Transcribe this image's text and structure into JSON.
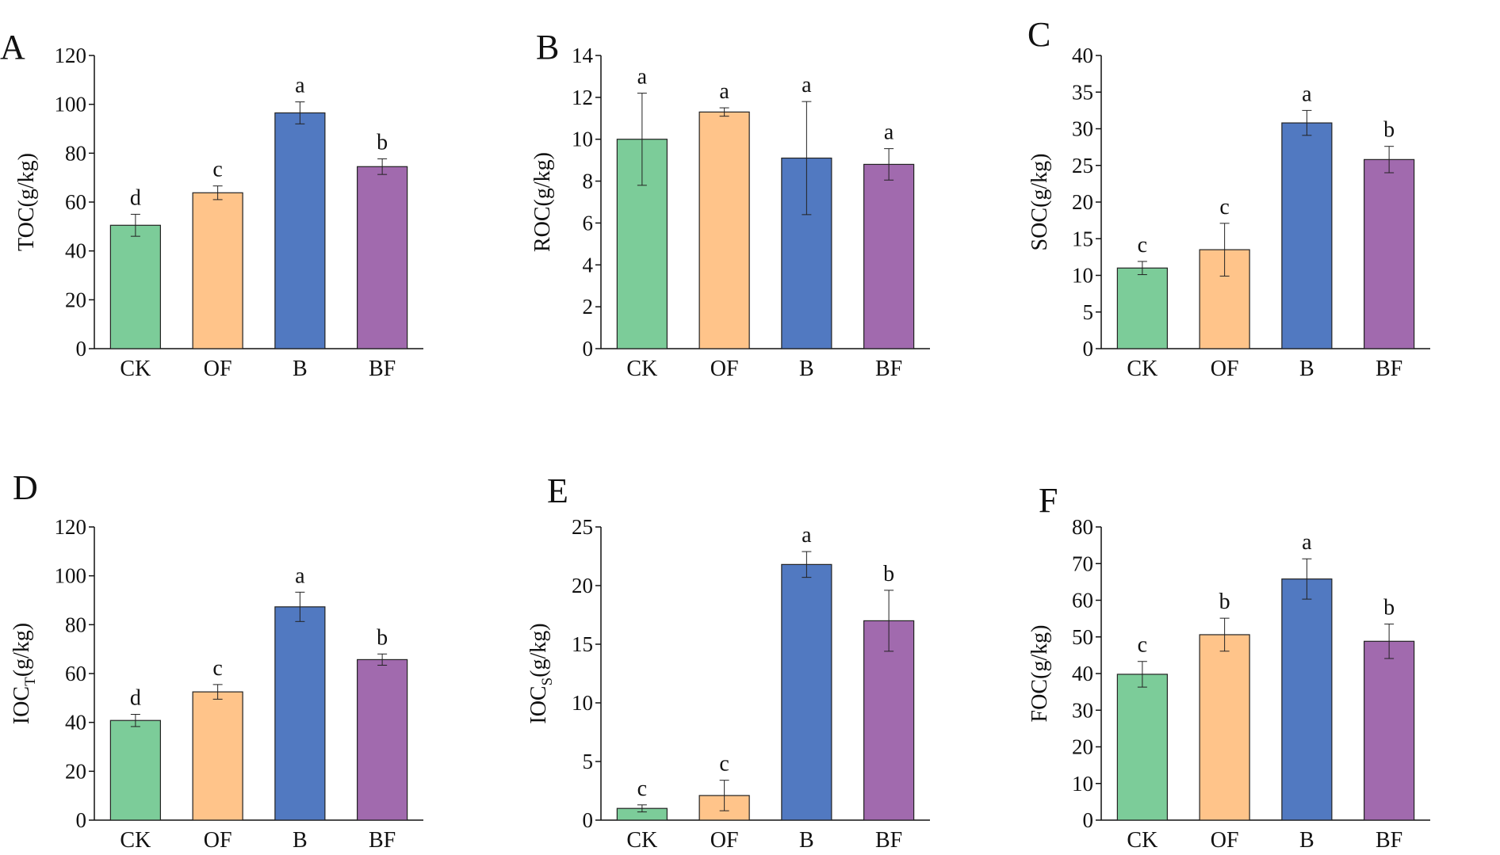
{
  "figure": {
    "colors": {
      "CK": "#7ccc99",
      "OF": "#ffc48a",
      "B": "#5179c1",
      "BF": "#a16aae",
      "axis": "#111111",
      "error": "#222222"
    }
  },
  "chart_data": [
    {
      "panel": "A",
      "type": "bar",
      "ylabel": {
        "main": "TOC",
        "sub": "",
        "unit": "(g/kg)"
      },
      "categories": [
        "CK",
        "OF",
        "B",
        "BF"
      ],
      "values": [
        50.5,
        63.8,
        96.5,
        74.5
      ],
      "errors": [
        4.5,
        2.8,
        4.5,
        3.2
      ],
      "letters": [
        "d",
        "c",
        "a",
        "b"
      ],
      "ylim": [
        0,
        120
      ],
      "yticks": [
        0,
        20,
        40,
        60,
        80,
        100,
        120
      ]
    },
    {
      "panel": "B",
      "type": "bar",
      "ylabel": {
        "main": "ROC",
        "sub": "",
        "unit": "(g/kg)"
      },
      "categories": [
        "CK",
        "OF",
        "B",
        "BF"
      ],
      "values": [
        10.0,
        11.3,
        9.1,
        8.8
      ],
      "errors": [
        2.2,
        0.2,
        2.7,
        0.75
      ],
      "letters": [
        "a",
        "a",
        "a",
        "a"
      ],
      "ylim": [
        0,
        14
      ],
      "yticks": [
        0,
        2,
        4,
        6,
        8,
        10,
        12,
        14
      ]
    },
    {
      "panel": "C",
      "type": "bar",
      "ylabel": {
        "main": "SOC",
        "sub": "",
        "unit": "(g/kg)"
      },
      "categories": [
        "CK",
        "OF",
        "B",
        "BF"
      ],
      "values": [
        11.0,
        13.5,
        30.8,
        25.8
      ],
      "errors": [
        0.9,
        3.6,
        1.7,
        1.8
      ],
      "letters": [
        "c",
        "c",
        "a",
        "b"
      ],
      "ylim": [
        0,
        40
      ],
      "yticks": [
        0,
        5,
        10,
        15,
        20,
        25,
        30,
        35,
        40
      ]
    },
    {
      "panel": "D",
      "type": "bar",
      "ylabel": {
        "main": "IOC",
        "sub": "T",
        "unit": "(g/kg)"
      },
      "categories": [
        "CK",
        "OF",
        "B",
        "BF"
      ],
      "values": [
        40.8,
        52.5,
        87.3,
        65.7
      ],
      "errors": [
        2.5,
        3.0,
        6.0,
        2.3
      ],
      "letters": [
        "d",
        "c",
        "a",
        "b"
      ],
      "ylim": [
        0,
        120
      ],
      "yticks": [
        0,
        20,
        40,
        60,
        80,
        100,
        120
      ]
    },
    {
      "panel": "E",
      "type": "bar",
      "ylabel": {
        "main": "IOC",
        "sub": "S",
        "unit": "(g/kg)"
      },
      "categories": [
        "CK",
        "OF",
        "B",
        "BF"
      ],
      "values": [
        1.0,
        2.1,
        21.8,
        17.0
      ],
      "errors": [
        0.3,
        1.3,
        1.1,
        2.6
      ],
      "letters": [
        "c",
        "c",
        "a",
        "b"
      ],
      "ylim": [
        0,
        25
      ],
      "yticks": [
        0,
        5,
        10,
        15,
        20,
        25
      ]
    },
    {
      "panel": "F",
      "type": "bar",
      "ylabel": {
        "main": "FOC",
        "sub": "",
        "unit": "(g/kg)"
      },
      "categories": [
        "CK",
        "OF",
        "B",
        "BF"
      ],
      "values": [
        39.8,
        50.6,
        65.8,
        48.8
      ],
      "errors": [
        3.5,
        4.5,
        5.5,
        4.7
      ],
      "letters": [
        "c",
        "b",
        "a",
        "b"
      ],
      "ylim": [
        0,
        80
      ],
      "yticks": [
        0,
        10,
        20,
        30,
        40,
        50,
        60,
        70,
        80
      ]
    }
  ]
}
